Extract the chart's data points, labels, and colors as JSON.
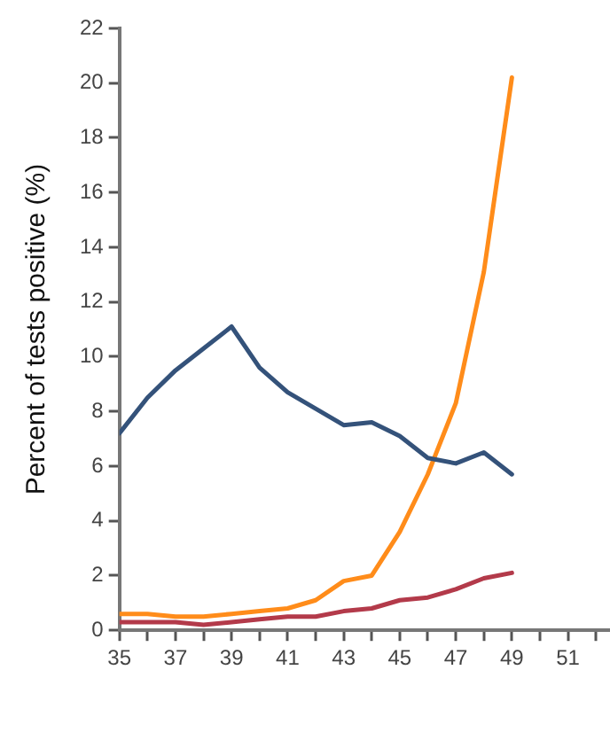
{
  "chart_data": {
    "type": "line",
    "ylabel": "Percent of tests positive (%)",
    "x": [
      35,
      36,
      37,
      38,
      39,
      40,
      41,
      42,
      43,
      44,
      45,
      46,
      47,
      48,
      49
    ],
    "series": [
      {
        "color": "#34527a",
        "values": [
          7.2,
          8.5,
          9.5,
          10.3,
          11.1,
          9.6,
          8.7,
          8.1,
          7.5,
          7.6,
          7.1,
          6.3,
          6.1,
          6.5,
          5.7
        ]
      },
      {
        "color": "#ff8c1a",
        "values": [
          0.6,
          0.6,
          0.5,
          0.5,
          0.6,
          0.7,
          0.8,
          1.1,
          1.8,
          2.0,
          3.6,
          5.7,
          8.3,
          13.1,
          20.2
        ]
      },
      {
        "color": "#b33a4a",
        "values": [
          0.3,
          0.3,
          0.3,
          0.2,
          0.3,
          0.4,
          0.5,
          0.5,
          0.7,
          0.8,
          1.1,
          1.2,
          1.5,
          1.9,
          2.1
        ]
      }
    ],
    "xlim": [
      35,
      52.5
    ],
    "xticks": [
      35,
      {
        "value": 36,
        "label": null
      },
      37,
      {
        "value": 38,
        "label": null
      },
      39,
      {
        "value": 40,
        "label": null
      },
      41,
      {
        "value": 42,
        "label": null
      },
      43,
      {
        "value": 44,
        "label": null
      },
      45,
      {
        "value": 46,
        "label": null
      },
      47,
      {
        "value": 48,
        "label": null
      },
      49,
      {
        "value": 50,
        "label": null
      },
      51,
      {
        "value": 52,
        "label": null
      }
    ],
    "ylim": [
      0,
      22
    ],
    "yticks": [
      0,
      2,
      4,
      6,
      8,
      10,
      12,
      14,
      16,
      18,
      20,
      22
    ],
    "grid": false,
    "legend": false,
    "marker": "none",
    "line_style": "solid"
  }
}
